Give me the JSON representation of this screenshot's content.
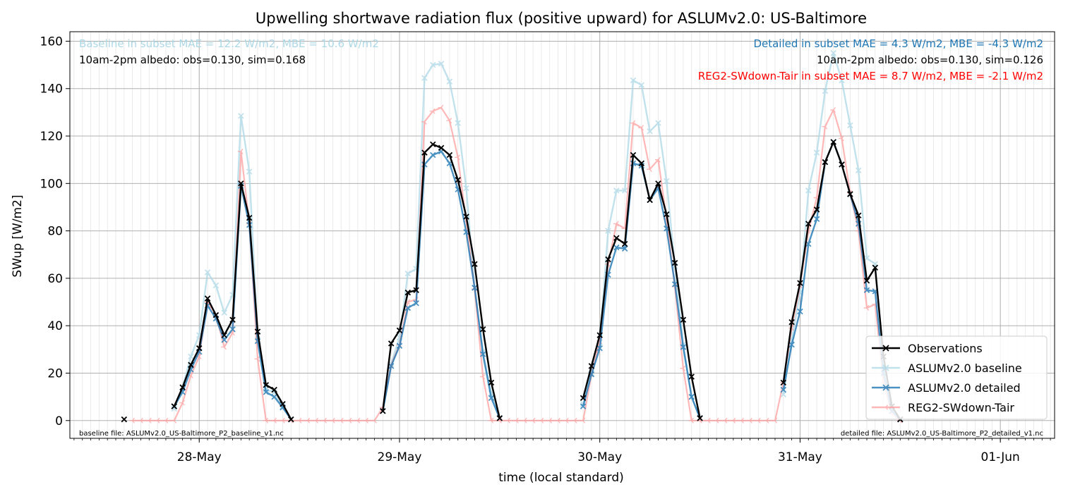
{
  "chart_data": {
    "type": "line",
    "title": "Upwelling shortwave radiation flux (positive upward) for ASLUMv2.0: US-Baltimore",
    "xlabel": "time (local standard)",
    "ylabel": "SWup [W/m2]",
    "ylim": [
      -7.5,
      164
    ],
    "yticks": [
      0,
      20,
      40,
      60,
      80,
      100,
      120,
      140,
      160
    ],
    "x_range_hours": [
      -15.5,
      102.5
    ],
    "x_tick_labels": [
      {
        "hour": 0,
        "label": "28-May"
      },
      {
        "hour": 24,
        "label": "29-May"
      },
      {
        "hour": 48,
        "label": "30-May"
      },
      {
        "hour": 72,
        "label": "31-May"
      },
      {
        "hour": 96,
        "label": "01-Jun"
      }
    ],
    "grid": true,
    "legend_position": "lower right",
    "annotations": {
      "baseline_stats": "Baseline in subset MAE = 12.2 W/m2, MBE = 10.6 W/m2",
      "baseline_albedo": "10am-2pm albedo: obs=0.130, sim=0.168",
      "detailed_stats": "Detailed in subset MAE = 4.3 W/m2, MBE = -4.3 W/m2",
      "detailed_albedo": "10am-2pm albedo: obs=0.130, sim=0.126",
      "reg2_stats": "REG2-SWdown-Tair in subset MAE = 8.7 W/m2, MBE = -2.1 W/m2",
      "baseline_file": "baseline file: ASLUMv2.0_US-Baltimore_P2_baseline_v1.nc",
      "detailed_file": "detailed file: ASLUMv2.0_US-Baltimore_P2_detailed_v1.nc"
    },
    "series": [
      {
        "name": "Observations",
        "color": "#000000",
        "marker": "x",
        "segments": [
          [
            [
              -9,
              0.5
            ]
          ],
          [
            [
              -3,
              6
            ],
            [
              -2,
              14
            ],
            [
              -1,
              23.5
            ],
            [
              0,
              30.5
            ],
            [
              1,
              51.5
            ],
            [
              2,
              44.5
            ],
            [
              3,
              36
            ],
            [
              4,
              42.5
            ],
            [
              5,
              100
            ],
            [
              6,
              85.5
            ],
            [
              7,
              37.5
            ],
            [
              8,
              15
            ],
            [
              9,
              13
            ],
            [
              10,
              7
            ],
            [
              11,
              0.5
            ]
          ],
          [
            [
              22,
              4
            ],
            [
              23,
              32.5
            ],
            [
              24,
              38
            ],
            [
              25,
              54
            ],
            [
              26,
              55
            ],
            [
              27,
              113
            ],
            [
              28,
              116.5
            ],
            [
              29,
              115
            ],
            [
              30,
              112
            ],
            [
              31,
              101.5
            ],
            [
              32,
              86
            ],
            [
              33,
              66
            ],
            [
              34,
              38.5
            ],
            [
              35,
              16
            ],
            [
              36,
              1
            ]
          ],
          [
            [
              46,
              9.5
            ],
            [
              47,
              23
            ],
            [
              48,
              36
            ],
            [
              49,
              68
            ],
            [
              50,
              77
            ],
            [
              51,
              74.5
            ],
            [
              52,
              112
            ],
            [
              53,
              108.5
            ],
            [
              54,
              93
            ],
            [
              55,
              100
            ],
            [
              56,
              87
            ],
            [
              57,
              66.5
            ],
            [
              58,
              42.5
            ],
            [
              59,
              18.5
            ],
            [
              60,
              1
            ]
          ],
          [
            [
              70,
              16
            ],
            [
              71,
              41.5
            ],
            [
              72,
              58
            ],
            [
              73,
              83
            ],
            [
              74,
              89
            ],
            [
              75,
              109
            ],
            [
              76,
              117.5
            ],
            [
              77,
              108
            ],
            [
              78,
              95.5
            ],
            [
              79,
              86.5
            ],
            [
              80,
              59
            ],
            [
              81,
              64.5
            ],
            [
              82,
              27
            ],
            [
              83,
              6
            ],
            [
              84,
              0.5
            ]
          ]
        ]
      },
      {
        "name": "ASLUMv2.0 baseline",
        "color": "#add8e6",
        "marker": "x",
        "segments": [
          [
            [
              -3,
              5
            ],
            [
              -2,
              14
            ],
            [
              -1,
              27
            ],
            [
              0,
              36
            ],
            [
              1,
              62.5
            ],
            [
              2,
              57
            ],
            [
              3,
              45.5
            ],
            [
              4,
              53
            ],
            [
              5,
              128.5
            ],
            [
              6,
              105
            ],
            [
              7,
              36
            ],
            [
              8,
              13
            ],
            [
              9,
              12
            ],
            [
              10,
              6
            ],
            [
              11,
              0.5
            ]
          ],
          [
            [
              22,
              4
            ],
            [
              23,
              24
            ],
            [
              24,
              35
            ],
            [
              25,
              62
            ],
            [
              26,
              64
            ],
            [
              27,
              144.5
            ],
            [
              28,
              150
            ],
            [
              29,
              150.5
            ],
            [
              30,
              143
            ],
            [
              31,
              125.5
            ],
            [
              32,
              98
            ],
            [
              33,
              56
            ],
            [
              34,
              29
            ],
            [
              35,
              11.5
            ],
            [
              36,
              1
            ]
          ],
          [
            [
              46,
              7
            ],
            [
              47,
              20
            ],
            [
              48,
              33
            ],
            [
              49,
              80
            ],
            [
              50,
              97
            ],
            [
              51,
              97
            ],
            [
              52,
              143.5
            ],
            [
              53,
              141.5
            ],
            [
              54,
              122
            ],
            [
              55,
              125.5
            ],
            [
              56,
              101
            ],
            [
              57,
              65
            ],
            [
              58,
              32
            ],
            [
              59,
              10
            ],
            [
              60,
              1
            ]
          ],
          [
            [
              70,
              11
            ],
            [
              71,
              34
            ],
            [
              72,
              54
            ],
            [
              73,
              97
            ],
            [
              74,
              113
            ],
            [
              75,
              139
            ],
            [
              76,
              155
            ],
            [
              77,
              143.5
            ],
            [
              78,
              124.5
            ],
            [
              79,
              105.5
            ],
            [
              80,
              68.5
            ],
            [
              81,
              66
            ],
            [
              82,
              24
            ],
            [
              83,
              5
            ],
            [
              84,
              0.5
            ]
          ]
        ]
      },
      {
        "name": "ASLUMv2.0 detailed",
        "color": "#1f77b4",
        "marker": "x",
        "segments": [
          [
            [
              -3,
              6
            ],
            [
              -2,
              12
            ],
            [
              -1,
              21.5
            ],
            [
              0,
              29
            ],
            [
              1,
              48.5
            ],
            [
              2,
              43
            ],
            [
              3,
              34
            ],
            [
              4,
              38.5
            ],
            [
              5,
              99
            ],
            [
              6,
              82.5
            ],
            [
              7,
              33.5
            ],
            [
              8,
              12
            ],
            [
              9,
              10
            ],
            [
              10,
              5.5
            ],
            [
              11,
              0.5
            ]
          ],
          [
            [
              22,
              4
            ],
            [
              23,
              23
            ],
            [
              24,
              31.5
            ],
            [
              25,
              47.5
            ],
            [
              26,
              49.5
            ],
            [
              27,
              108
            ],
            [
              28,
              112
            ],
            [
              29,
              113.5
            ],
            [
              30,
              108.5
            ],
            [
              31,
              97.5
            ],
            [
              32,
              79.5
            ],
            [
              33,
              56
            ],
            [
              34,
              28
            ],
            [
              35,
              9.5
            ],
            [
              36,
              1
            ]
          ],
          [
            [
              46,
              6
            ],
            [
              47,
              19.5
            ],
            [
              48,
              30.5
            ],
            [
              49,
              61.5
            ],
            [
              50,
              73
            ],
            [
              51,
              72.5
            ],
            [
              52,
              108.5
            ],
            [
              53,
              107.5
            ],
            [
              54,
              93
            ],
            [
              55,
              98
            ],
            [
              56,
              81
            ],
            [
              57,
              57.5
            ],
            [
              58,
              31
            ],
            [
              59,
              10
            ],
            [
              60,
              1
            ]
          ],
          [
            [
              70,
              13
            ],
            [
              71,
              32
            ],
            [
              72,
              46
            ],
            [
              73,
              74.5
            ],
            [
              74,
              85
            ],
            [
              75,
              109
            ],
            [
              76,
              117.5
            ],
            [
              77,
              108
            ],
            [
              78,
              95.5
            ],
            [
              79,
              83
            ],
            [
              80,
              55
            ],
            [
              81,
              54.5
            ],
            [
              82,
              20
            ],
            [
              83,
              4
            ],
            [
              84,
              0.5
            ]
          ]
        ]
      },
      {
        "name": "REG2-SWdown-Tair",
        "color": "#ff9999",
        "marker": "tri",
        "segments": [
          [
            [
              -8,
              0
            ],
            [
              -7,
              0
            ],
            [
              -6,
              0
            ],
            [
              -5,
              0
            ],
            [
              -4,
              0
            ],
            [
              -3,
              0
            ],
            [
              -2,
              7.5
            ],
            [
              -1,
              19
            ],
            [
              0,
              27
            ],
            [
              1,
              50
            ],
            [
              2,
              44.5
            ],
            [
              3,
              31
            ],
            [
              4,
              37
            ],
            [
              5,
              113.5
            ],
            [
              6,
              83
            ],
            [
              7,
              26
            ],
            [
              8,
              0
            ],
            [
              9,
              0
            ],
            [
              10,
              0
            ],
            [
              11,
              0
            ],
            [
              12,
              0
            ],
            [
              13,
              0
            ],
            [
              14,
              0
            ],
            [
              15,
              0
            ],
            [
              16,
              0
            ],
            [
              17,
              0
            ],
            [
              18,
              0
            ],
            [
              19,
              0
            ],
            [
              20,
              0
            ],
            [
              21,
              0
            ],
            [
              22,
              5.5
            ],
            [
              23,
              23.5
            ],
            [
              24,
              32
            ],
            [
              25,
              50
            ],
            [
              26,
              51
            ],
            [
              27,
              126
            ],
            [
              28,
              130.5
            ],
            [
              29,
              132
            ],
            [
              30,
              126.5
            ],
            [
              31,
              111
            ],
            [
              32,
              84
            ],
            [
              33,
              55.5
            ],
            [
              34,
              18.5
            ],
            [
              35,
              0
            ],
            [
              36,
              0
            ],
            [
              37,
              0
            ],
            [
              38,
              0
            ],
            [
              39,
              0
            ],
            [
              40,
              0
            ],
            [
              41,
              0
            ],
            [
              42,
              0
            ],
            [
              43,
              0
            ],
            [
              44,
              0
            ],
            [
              45,
              0
            ],
            [
              46,
              0
            ],
            [
              47,
              19.5
            ],
            [
              48,
              33.5
            ],
            [
              49,
              66
            ],
            [
              50,
              83
            ],
            [
              51,
              81
            ],
            [
              52,
              125.5
            ],
            [
              53,
              123.5
            ],
            [
              54,
              106
            ],
            [
              55,
              110
            ],
            [
              56,
              85
            ],
            [
              57,
              56.5
            ],
            [
              58,
              22
            ],
            [
              59,
              0
            ],
            [
              60,
              0
            ],
            [
              61,
              0
            ],
            [
              62,
              0
            ],
            [
              63,
              0
            ],
            [
              64,
              0
            ],
            [
              65,
              0
            ],
            [
              66,
              0
            ],
            [
              67,
              0
            ],
            [
              68,
              0
            ],
            [
              69,
              0
            ],
            [
              70,
              16
            ],
            [
              71,
              39
            ],
            [
              72,
              57
            ],
            [
              73,
              80
            ],
            [
              74,
              94
            ],
            [
              75,
              124
            ],
            [
              76,
              131
            ],
            [
              77,
              119
            ],
            [
              78,
              96
            ],
            [
              79,
              80
            ],
            [
              80,
              47.5
            ],
            [
              81,
              49
            ],
            [
              82,
              16
            ],
            [
              83,
              3
            ],
            [
              84,
              0
            ]
          ]
        ]
      }
    ]
  }
}
